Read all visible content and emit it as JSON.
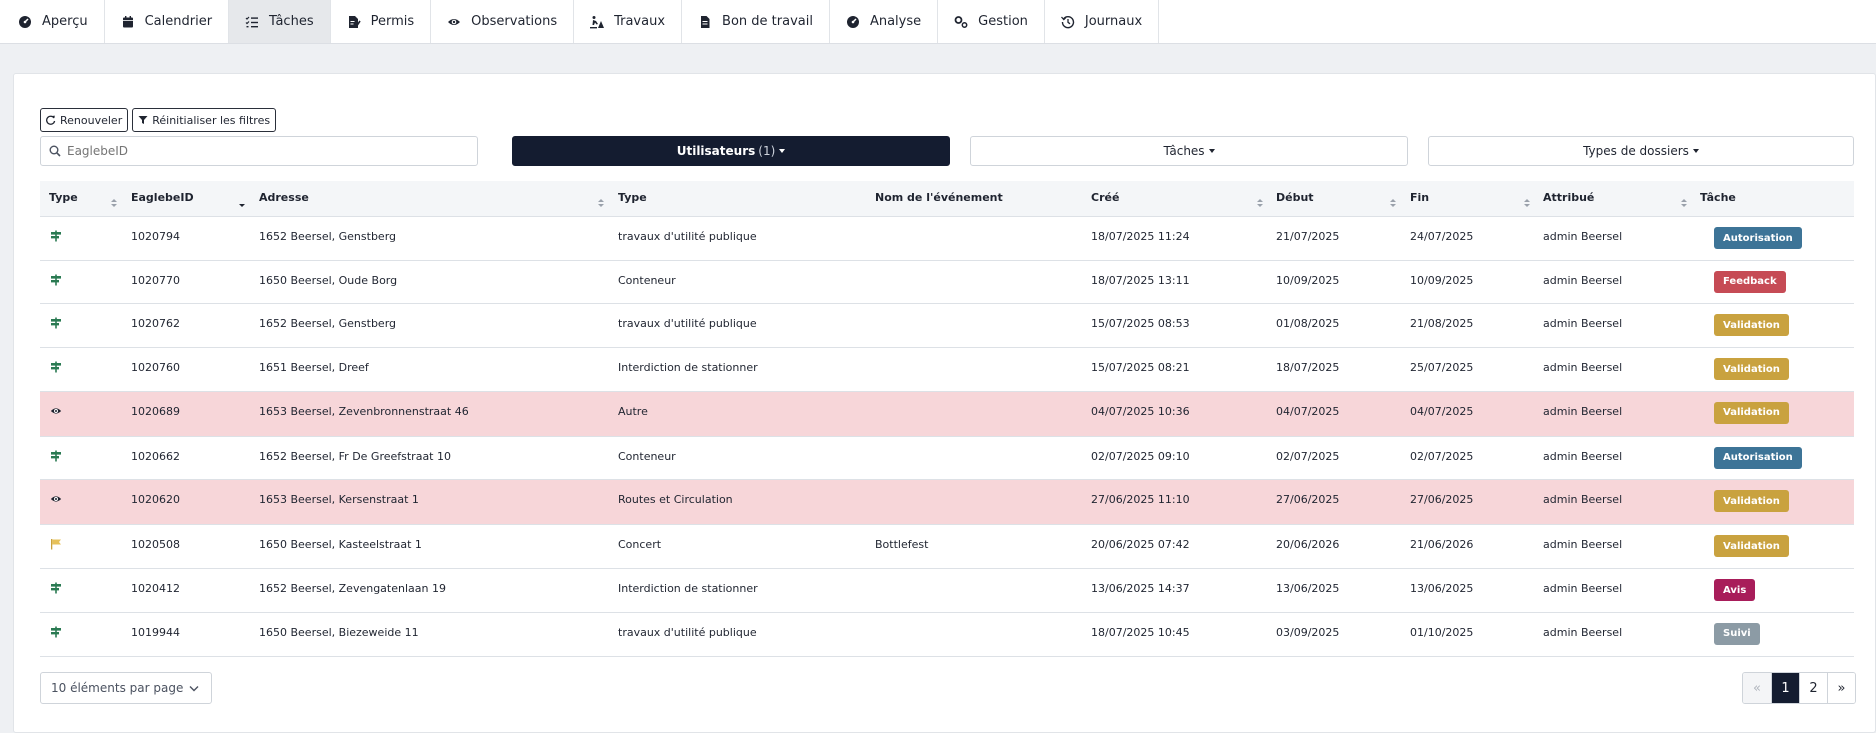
{
  "nav": {
    "items": [
      {
        "label": "Aperçu",
        "icon": "gauge-icon"
      },
      {
        "label": "Calendrier",
        "icon": "calendar-icon"
      },
      {
        "label": "Tâches",
        "icon": "tasks-icon"
      },
      {
        "label": "Permis",
        "icon": "permit-icon"
      },
      {
        "label": "Observations",
        "icon": "eye-icon"
      },
      {
        "label": "Travaux",
        "icon": "roadworks-icon"
      },
      {
        "label": "Bon de travail",
        "icon": "document-icon"
      },
      {
        "label": "Analyse",
        "icon": "gauge-icon"
      },
      {
        "label": "Gestion",
        "icon": "cogs-icon"
      },
      {
        "label": "Journaux",
        "icon": "history-icon"
      }
    ],
    "active": "Tâches"
  },
  "toolbar": {
    "refresh_label": "Renouveler",
    "reset_label": "Réinitialiser les filtres"
  },
  "filters": {
    "search_placeholder": "EaglebeID",
    "users_label": "Utilisateurs",
    "users_count": "(1)",
    "tasks_label": "Tâches",
    "types_label": "Types de dossiers"
  },
  "table": {
    "headers": {
      "type": "Type",
      "id": "EaglebeID",
      "address": "Adresse",
      "dtype": "Type",
      "event": "Nom de l'événement",
      "created": "Créé",
      "start": "Début",
      "end": "Fin",
      "assigned": "Attribué",
      "task": "Tâche"
    },
    "rows": [
      {
        "icon": "signpost-icon",
        "id": "1020794",
        "address": "1652 Beersel, Genstberg",
        "type": "travaux d'utilité publique",
        "event": "",
        "created": "18/07/2025 11:24",
        "start": "21/07/2025",
        "end": "24/07/2025",
        "assigned": "admin Beersel",
        "task": "Autorisation",
        "task_color": "#3d7497",
        "alert": false
      },
      {
        "icon": "signpost-icon",
        "id": "1020770",
        "address": "1650 Beersel, Oude Borg",
        "type": "Conteneur",
        "event": "",
        "created": "18/07/2025 13:11",
        "start": "10/09/2025",
        "end": "10/09/2025",
        "assigned": "admin Beersel",
        "task": "Feedback",
        "task_color": "#c64b55",
        "alert": false
      },
      {
        "icon": "signpost-icon",
        "id": "1020762",
        "address": "1652 Beersel, Genstberg",
        "type": "travaux d'utilité publique",
        "event": "",
        "created": "15/07/2025 08:53",
        "start": "01/08/2025",
        "end": "21/08/2025",
        "assigned": "admin Beersel",
        "task": "Validation",
        "task_color": "#c9a23f",
        "alert": false
      },
      {
        "icon": "signpost-icon",
        "id": "1020760",
        "address": "1651 Beersel, Dreef",
        "type": "Interdiction de stationner",
        "event": "",
        "created": "15/07/2025 08:21",
        "start": "18/07/2025",
        "end": "25/07/2025",
        "assigned": "admin Beersel",
        "task": "Validation",
        "task_color": "#c9a23f",
        "alert": false
      },
      {
        "icon": "eye-icon",
        "id": "1020689",
        "address": "1653 Beersel, Zevenbronnenstraat 46",
        "type": "Autre",
        "event": "",
        "created": "04/07/2025 10:36",
        "start": "04/07/2025",
        "end": "04/07/2025",
        "assigned": "admin Beersel",
        "task": "Validation",
        "task_color": "#c9a23f",
        "alert": true
      },
      {
        "icon": "signpost-icon",
        "id": "1020662",
        "address": "1652 Beersel, Fr De Greefstraat 10",
        "type": "Conteneur",
        "event": "",
        "created": "02/07/2025 09:10",
        "start": "02/07/2025",
        "end": "02/07/2025",
        "assigned": "admin Beersel",
        "task": "Autorisation",
        "task_color": "#3d7497",
        "alert": false
      },
      {
        "icon": "eye-icon",
        "id": "1020620",
        "address": "1653 Beersel, Kersenstraat 1",
        "type": "Routes et Circulation",
        "event": "",
        "created": "27/06/2025 11:10",
        "start": "27/06/2025",
        "end": "27/06/2025",
        "assigned": "admin Beersel",
        "task": "Validation",
        "task_color": "#c9a23f",
        "alert": true
      },
      {
        "icon": "flag-icon",
        "id": "1020508",
        "address": "1650 Beersel, Kasteelstraat 1",
        "type": "Concert",
        "event": "Bottlefest",
        "created": "20/06/2025 07:42",
        "start": "20/06/2026",
        "end": "21/06/2026",
        "assigned": "admin Beersel",
        "task": "Validation",
        "task_color": "#c9a23f",
        "alert": false
      },
      {
        "icon": "signpost-icon",
        "id": "1020412",
        "address": "1652 Beersel, Zevengatenlaan 19",
        "type": "Interdiction de stationner",
        "event": "",
        "created": "13/06/2025 14:37",
        "start": "13/06/2025",
        "end": "13/06/2025",
        "assigned": "admin Beersel",
        "task": "Avis",
        "task_color": "#a81d5a",
        "alert": false
      },
      {
        "icon": "signpost-icon",
        "id": "1019944",
        "address": "1650 Beersel, Biezeweide 11",
        "type": "travaux d'utilité publique",
        "event": "",
        "created": "18/07/2025 10:45",
        "start": "03/09/2025",
        "end": "01/10/2025",
        "assigned": "admin Beersel",
        "task": "Suivi",
        "task_color": "#8c9ba5",
        "alert": false
      }
    ]
  },
  "footer": {
    "per_page": "10 éléments par page",
    "pages": [
      "«",
      "1",
      "2",
      "»"
    ],
    "current_page": "1"
  }
}
